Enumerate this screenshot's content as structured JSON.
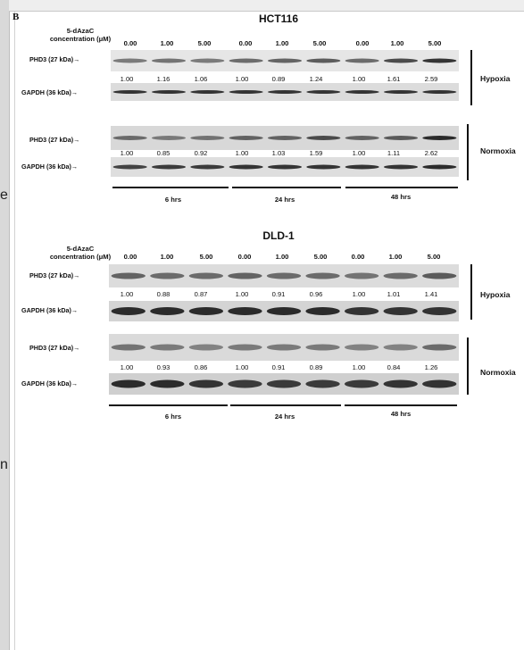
{
  "panel_letter": "B",
  "edge_chars": [
    "e",
    "n"
  ],
  "concentration_label": [
    "5-dAzaC",
    "concentration (μM)"
  ],
  "concentrations": [
    "0.00",
    "1.00",
    "5.00",
    "0.00",
    "1.00",
    "5.00",
    "0.00",
    "1.00",
    "5.00"
  ],
  "time_labels": [
    "6 hrs",
    "24 hrs",
    "48 hrs"
  ],
  "panels": [
    {
      "title": "HCT116",
      "blocks": [
        {
          "condition": "Hypoxia",
          "target_label": "PHD3 (27 kDa)",
          "control_label": "GAPDH (36 kDa)",
          "values": [
            "1.00",
            "1.16",
            "1.06",
            "1.00",
            "0.89",
            "1.24",
            "1.00",
            "1.61",
            "2.59"
          ]
        },
        {
          "condition": "Normoxia",
          "target_label": "PHD3 (27 kDa)",
          "control_label": "GAPDH (36 kDa)",
          "values": [
            "1.00",
            "0.85",
            "0.92",
            "1.00",
            "1.03",
            "1.59",
            "1.00",
            "1.11",
            "2.62"
          ]
        }
      ]
    },
    {
      "title": "DLD-1",
      "blocks": [
        {
          "condition": "Hypoxia",
          "target_label": "PHD3 (27 kDa)",
          "control_label": "GAPDH (36 kDa)",
          "values": [
            "1.00",
            "0.88",
            "0.87",
            "1.00",
            "0.91",
            "0.96",
            "1.00",
            "1.01",
            "1.41"
          ]
        },
        {
          "condition": "Normoxia",
          "target_label": "PHD3 (27 kDa)",
          "control_label": "GAPDH (36 kDa)",
          "values": [
            "1.00",
            "0.93",
            "0.86",
            "1.00",
            "0.91",
            "0.89",
            "1.00",
            "0.84",
            "1.26"
          ]
        }
      ]
    }
  ],
  "band_intensity": {
    "HCT116": {
      "hypoxia_phd3": [
        0.45,
        0.5,
        0.45,
        0.55,
        0.6,
        0.65,
        0.55,
        0.75,
        0.9
      ],
      "hypoxia_gapdh": [
        0.9,
        0.9,
        0.9,
        0.9,
        0.9,
        0.9,
        0.9,
        0.9,
        0.9
      ],
      "normoxia_phd3": [
        0.55,
        0.45,
        0.5,
        0.6,
        0.6,
        0.75,
        0.6,
        0.65,
        0.95
      ],
      "normoxia_gapdh": [
        0.8,
        0.85,
        0.85,
        0.9,
        0.9,
        0.9,
        0.9,
        0.9,
        0.95
      ]
    },
    "DLD-1": {
      "hypoxia_phd3": [
        0.6,
        0.55,
        0.55,
        0.6,
        0.55,
        0.55,
        0.5,
        0.55,
        0.65
      ],
      "hypoxia_gapdh": [
        0.95,
        0.95,
        0.95,
        0.95,
        0.95,
        0.95,
        0.9,
        0.9,
        0.9
      ],
      "normoxia_phd3": [
        0.5,
        0.45,
        0.4,
        0.45,
        0.45,
        0.45,
        0.4,
        0.4,
        0.55
      ],
      "normoxia_gapdh": [
        0.95,
        0.95,
        0.9,
        0.85,
        0.85,
        0.85,
        0.85,
        0.9,
        0.9
      ]
    }
  }
}
